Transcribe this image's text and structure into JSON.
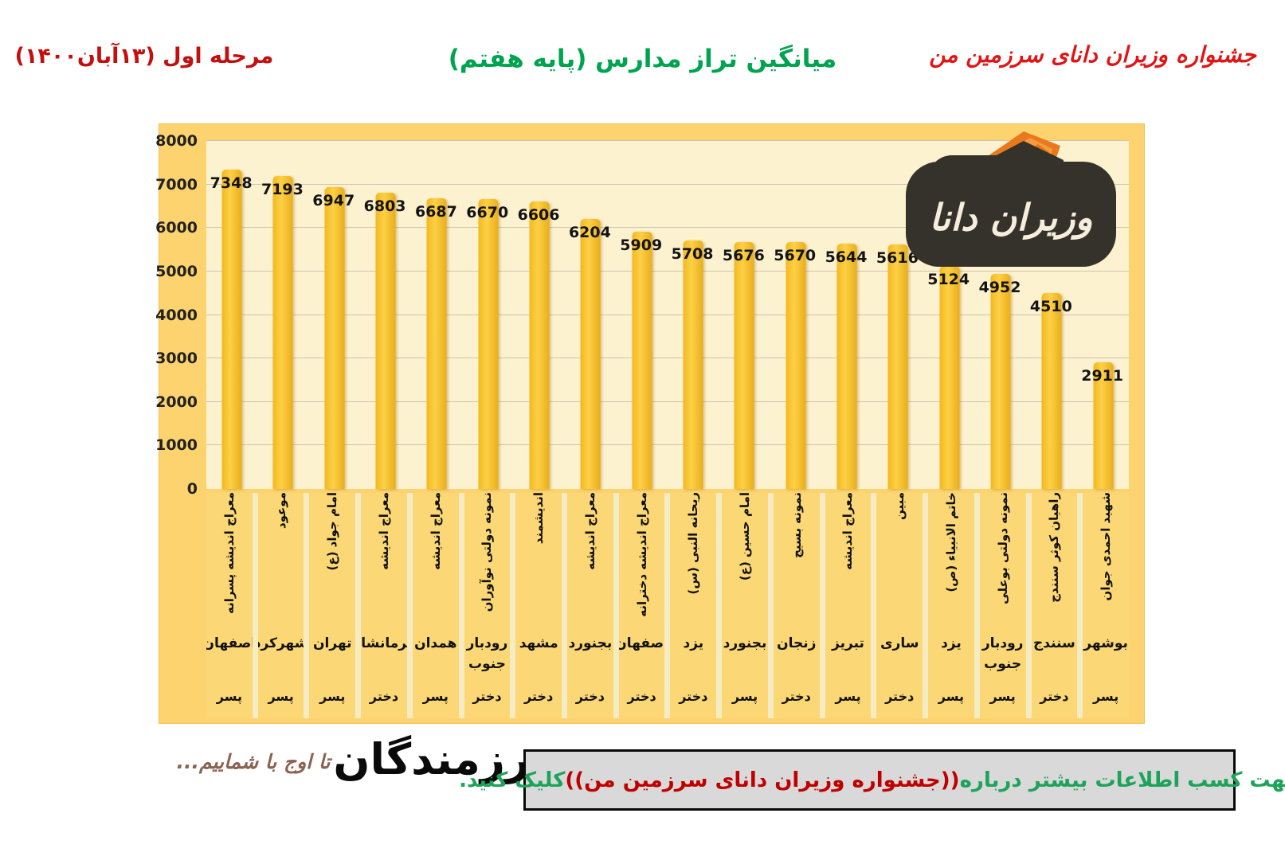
{
  "header": {
    "stage": "مرحله اول (۱۳آبان۱۴۰۰)",
    "title": "میانگین تراز مدارس (پایه هفتم)",
    "festival": "جشنواره وزیران دانای سرزمین من"
  },
  "logo": {
    "text": "وزیران دانا"
  },
  "chart_data": {
    "type": "bar",
    "title": "میانگین تراز مدارس (پایه هفتم)",
    "xlabel": "",
    "ylabel": "",
    "ylim": [
      0,
      8000
    ],
    "ytick_step": 1000,
    "grid": true,
    "legend": false,
    "bar_color": "#f6be2c",
    "bars": [
      {
        "school": "معراج اندیشه پسرانه",
        "city": "اصفهان",
        "gender": "پسر",
        "value": 7348
      },
      {
        "school": "موعود",
        "city": "شهرکرد",
        "gender": "پسر",
        "value": 7193
      },
      {
        "school": "امام جواد (ع)",
        "city": "تهران",
        "gender": "پسر",
        "value": 6947
      },
      {
        "school": "معراج اندیشه",
        "city": "کرمانشاه",
        "gender": "دختر",
        "value": 6803
      },
      {
        "school": "معراج اندیشه",
        "city": "همدان",
        "gender": "پسر",
        "value": 6687
      },
      {
        "school": "نمونه دولتی نوآوران",
        "city": "رودبار جنوب",
        "gender": "دختر",
        "value": 6670
      },
      {
        "school": "اندیشمند",
        "city": "مشهد",
        "gender": "دختر",
        "value": 6606
      },
      {
        "school": "معراج اندیشه",
        "city": "بجنورد",
        "gender": "دختر",
        "value": 6204
      },
      {
        "school": "معراج اندیشه دخترانه",
        "city": "اصفهان",
        "gender": "دختر",
        "value": 5909
      },
      {
        "school": "ریحانه النبی (س)",
        "city": "یزد",
        "gender": "دختر",
        "value": 5708
      },
      {
        "school": "امام حسین (ع)",
        "city": "بجنورد",
        "gender": "پسر",
        "value": 5676
      },
      {
        "school": "نمونه بسیج",
        "city": "زنجان",
        "gender": "دختر",
        "value": 5670
      },
      {
        "school": "معراج اندیشه",
        "city": "تبریز",
        "gender": "پسر",
        "value": 5644
      },
      {
        "school": "مبین",
        "city": "ساری",
        "gender": "دختر",
        "value": 5616
      },
      {
        "school": "خاتم الانبیاء (ص)",
        "city": "یزد",
        "gender": "پسر",
        "value": 5124
      },
      {
        "school": "نمونه دولتی بوعلی",
        "city": "رودبار جنوب",
        "gender": "پسر",
        "value": 4952
      },
      {
        "school": "راهیان کوثر سنندج",
        "city": "سنندج",
        "gender": "دختر",
        "value": 4510
      },
      {
        "school": "شهید احمدی جوان",
        "city": "بوشهر",
        "gender": "پسر",
        "value": 2911
      }
    ]
  },
  "footer": {
    "slogan": "تا اوج با شماییم...",
    "brand": "رزمندگان",
    "click_prefix": "جهت کسب اطلاعات بیشتر درباره ",
    "click_festival": "((جشنواره وزیران دانای سرزمین من))",
    "click_suffix": " کلیک کنید."
  },
  "colors": {
    "header_red": "#c40f0f",
    "title_green": "#00a44e",
    "chart_band": "#fcd36f",
    "plot_bg": "#fdf2cf",
    "bar_gold": "#f6be2c",
    "label_box": "#fbd775",
    "click_box_bg": "#d9d9d9",
    "click_green": "#1ea35a",
    "click_red": "#c00000",
    "slogan_brown": "#8a6352",
    "logo_dark": "#35312b",
    "logo_orange": "#e8791d"
  }
}
